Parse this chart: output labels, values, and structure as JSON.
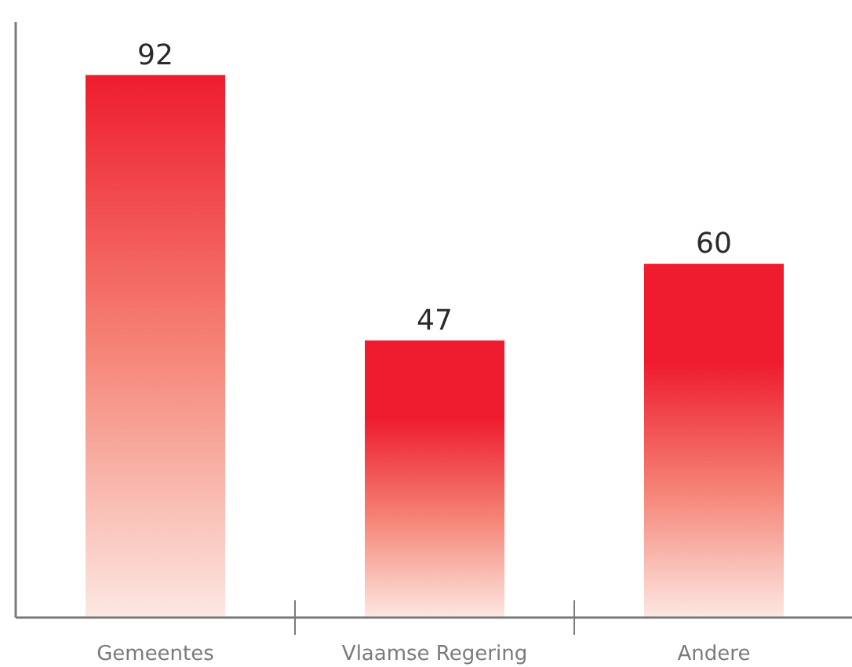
{
  "chart_data": {
    "type": "bar",
    "categories": [
      "Gemeentes",
      "Vlaamse Regering",
      "Andere"
    ],
    "values": [
      92,
      47,
      60
    ],
    "color": "#ee1c2e",
    "ylim": [
      0,
      101
    ],
    "data_labels": true,
    "tick_labels": "x"
  }
}
